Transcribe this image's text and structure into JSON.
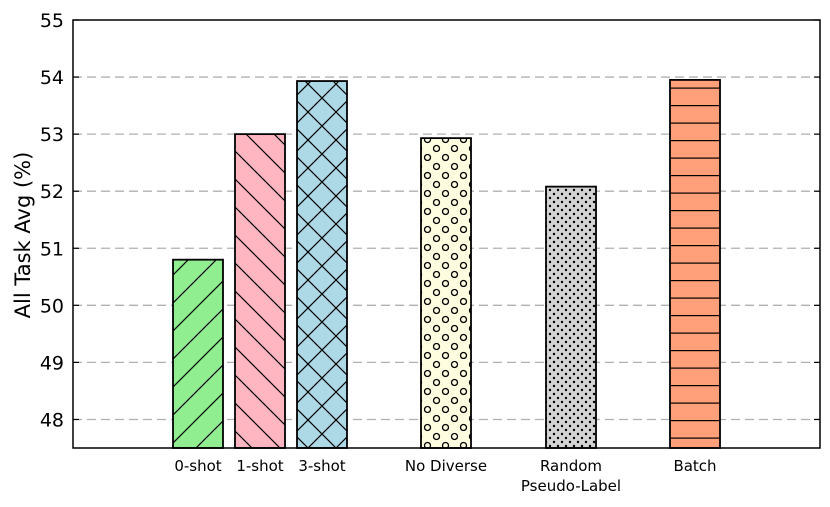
{
  "chart_data": {
    "type": "bar",
    "title": "",
    "xlabel": "",
    "ylabel": "All Task Avg (%)",
    "ylim": [
      47.5,
      55
    ],
    "yticks": [
      48,
      49,
      50,
      51,
      52,
      53,
      54,
      55
    ],
    "grid": "horizontal dashed",
    "bars": [
      {
        "label": "0-shot",
        "value": 50.8,
        "color": "#90ee90",
        "hatch": "forward-diagonal"
      },
      {
        "label": "1-shot",
        "value": 53.0,
        "color": "#ffb6c1",
        "hatch": "back-diagonal"
      },
      {
        "label": "3-shot",
        "value": 53.93,
        "color": "#add8e6",
        "hatch": "crosshatch"
      },
      {
        "label": "No Diverse",
        "value": 52.93,
        "color": "#fffde0",
        "hatch": "circles"
      },
      {
        "label": "Random\nPseudo-Label",
        "value": 52.08,
        "color": "#d3d3d3",
        "hatch": "dots"
      },
      {
        "label": "Batch",
        "value": 53.95,
        "color": "#ffa07a",
        "hatch": "horizontal"
      }
    ]
  }
}
